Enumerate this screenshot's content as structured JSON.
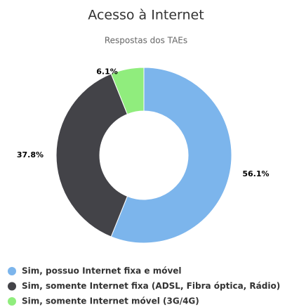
{
  "chart_data": {
    "type": "pie",
    "title": "Acesso à Internet",
    "subtitle": "Respostas dos TAEs",
    "categories": [
      "Sim, possuo Internet fixa e móvel",
      "Sim, somente Internet fixa (ADSL, Fibra óptica, Rádio)",
      "Sim, somente Internet móvel (3G/4G)"
    ],
    "values": [
      56.1,
      37.8,
      6.1
    ],
    "value_labels": [
      "56.1%",
      "37.8%",
      "6.1%"
    ],
    "colors": [
      "#7cb5ec",
      "#434348",
      "#90ed7d"
    ],
    "legend": "bottom-left"
  }
}
